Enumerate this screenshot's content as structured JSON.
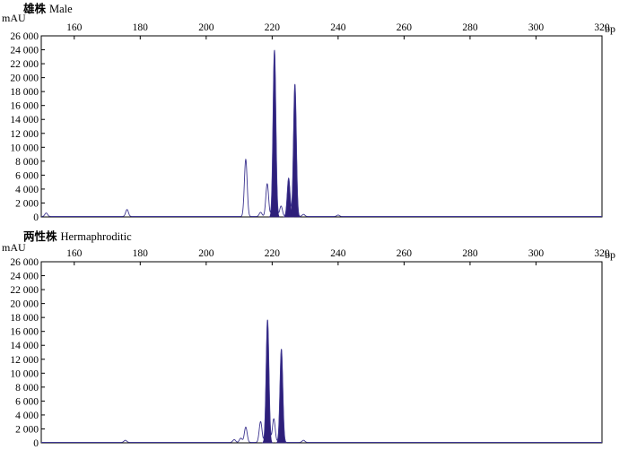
{
  "chart_data": [
    {
      "type": "line",
      "title_cn": "雄株",
      "title_en": "Male",
      "ylabel": "mAU",
      "x_unit": "bp",
      "xlim": [
        150,
        320
      ],
      "ylim": [
        0,
        26000
      ],
      "xticks": [
        160,
        180,
        200,
        220,
        240,
        260,
        280,
        300,
        320
      ],
      "xtick_labels": [
        "160",
        "180",
        "200",
        "220",
        "240",
        "260",
        "280",
        "300",
        "320"
      ],
      "yticks": [
        0,
        2000,
        4000,
        6000,
        8000,
        10000,
        12000,
        14000,
        16000,
        18000,
        20000,
        22000,
        24000,
        26000
      ],
      "ytick_labels": [
        "0",
        "2 000",
        "4 000",
        "6 000",
        "8 000",
        "10 000",
        "12 000",
        "14 000",
        "16 000",
        "18 000",
        "20 000",
        "22 000",
        "24 000",
        "26 000"
      ],
      "grid": false,
      "line_color": "#3d3590",
      "fill_color": "#2e1f7a",
      "peaks": [
        {
          "x": 151.5,
          "y": 500,
          "filled": false
        },
        {
          "x": 176.0,
          "y": 1000,
          "filled": false
        },
        {
          "x": 212.0,
          "y": 8200,
          "filled": false
        },
        {
          "x": 216.5,
          "y": 600,
          "filled": false
        },
        {
          "x": 218.5,
          "y": 4700,
          "filled": false
        },
        {
          "x": 220.7,
          "y": 23900,
          "filled": true
        },
        {
          "x": 222.7,
          "y": 1500,
          "filled": false
        },
        {
          "x": 225.0,
          "y": 5500,
          "filled": true
        },
        {
          "x": 226.9,
          "y": 19000,
          "filled": true
        },
        {
          "x": 229.5,
          "y": 300,
          "filled": false
        },
        {
          "x": 240.0,
          "y": 200,
          "filled": false
        }
      ]
    },
    {
      "type": "line",
      "title_cn": "两性株",
      "title_en": "Hermaphroditic",
      "ylabel": "mAU",
      "x_unit": "bp",
      "xlim": [
        150,
        320
      ],
      "ylim": [
        0,
        26000
      ],
      "xticks": [
        160,
        180,
        200,
        220,
        240,
        260,
        280,
        300,
        320
      ],
      "xtick_labels": [
        "160",
        "180",
        "200",
        "220",
        "240",
        "260",
        "280",
        "300",
        "320"
      ],
      "yticks": [
        0,
        2000,
        4000,
        6000,
        8000,
        10000,
        12000,
        14000,
        16000,
        18000,
        20000,
        22000,
        24000,
        26000
      ],
      "ytick_labels": [
        "0",
        "2 000",
        "4 000",
        "6 000",
        "8 000",
        "10 000",
        "12 000",
        "14 000",
        "16 000",
        "18 000",
        "20 000",
        "22 000",
        "24 000",
        "26 000"
      ],
      "grid": false,
      "line_color": "#3d3590",
      "fill_color": "#2e1f7a",
      "peaks": [
        {
          "x": 175.5,
          "y": 300,
          "filled": false
        },
        {
          "x": 208.5,
          "y": 400,
          "filled": false
        },
        {
          "x": 210.5,
          "y": 600,
          "filled": false
        },
        {
          "x": 212.0,
          "y": 2200,
          "filled": false
        },
        {
          "x": 216.5,
          "y": 3000,
          "filled": false
        },
        {
          "x": 218.6,
          "y": 17600,
          "filled": true
        },
        {
          "x": 220.5,
          "y": 3400,
          "filled": false
        },
        {
          "x": 222.8,
          "y": 13400,
          "filled": true
        },
        {
          "x": 229.5,
          "y": 300,
          "filled": false
        }
      ]
    }
  ]
}
